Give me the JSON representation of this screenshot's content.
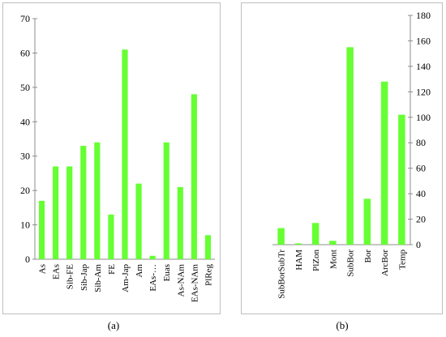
{
  "chart_data": [
    {
      "type": "bar",
      "caption": "(a)",
      "categories": [
        "As",
        "EAs",
        "Sib-FE",
        "Sib-Jap",
        "Sib-Am",
        "FE",
        "Am-Jap",
        "Am",
        "EAs-…",
        "Euas",
        "As-NAm",
        "EAs-NAm",
        "PlReg"
      ],
      "values": [
        17,
        27,
        27,
        33,
        34,
        13,
        61,
        22,
        1,
        34,
        21,
        48,
        7
      ],
      "ylim": [
        0,
        70
      ],
      "yticks": [
        0,
        10,
        20,
        30,
        40,
        50,
        60,
        70
      ],
      "y_axis_side": "left",
      "grid": false,
      "legend": "none",
      "bar_color": "#66ff33"
    },
    {
      "type": "bar",
      "caption": "(b)",
      "categories": [
        "SubBorSubTr",
        "HAM",
        "PlZon",
        "Mont",
        "SubBor",
        "Bor",
        "ArcBor",
        "Temp"
      ],
      "values": [
        13,
        1,
        17,
        3,
        155,
        36,
        128,
        102
      ],
      "ylim": [
        0,
        180
      ],
      "yticks": [
        0,
        20,
        40,
        60,
        80,
        100,
        120,
        140,
        160,
        180
      ],
      "y_axis_side": "right",
      "grid": false,
      "legend": "none",
      "bar_color": "#66ff33"
    }
  ]
}
